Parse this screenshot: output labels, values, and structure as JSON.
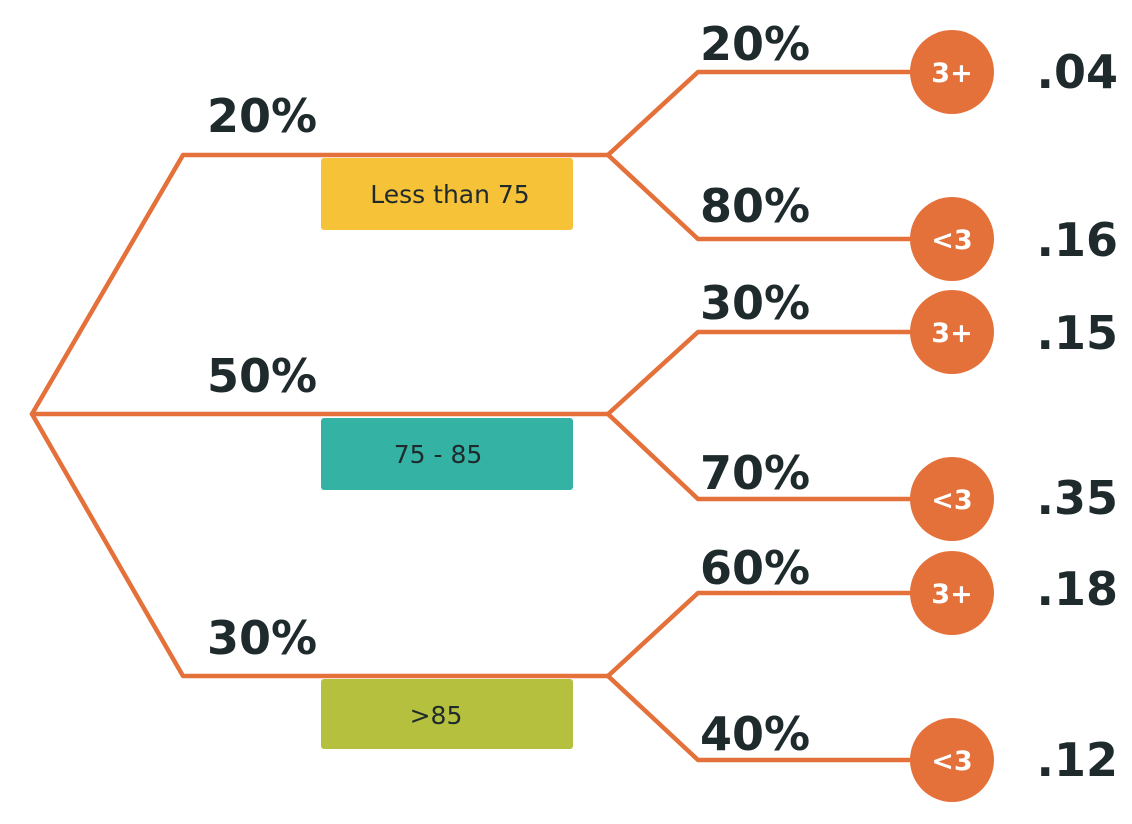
{
  "colors": {
    "branch": "#e4703a",
    "leaf": "#e4703a",
    "text": "#1f2a2d",
    "box_less_than_75": "#f6c238",
    "box_75_85": "#34b3a4",
    "box_over_85": "#b5c13e"
  },
  "branches": [
    {
      "probability": "20%",
      "label": "Less than 75",
      "outcomes": [
        {
          "probability": "20%",
          "result": "3+",
          "joint": ".04"
        },
        {
          "probability": "80%",
          "result": "<3",
          "joint": ".16"
        }
      ]
    },
    {
      "probability": "50%",
      "label": "75 - 85",
      "outcomes": [
        {
          "probability": "30%",
          "result": "3+",
          "joint": ".15"
        },
        {
          "probability": "70%",
          "result": "<3",
          "joint": ".35"
        }
      ]
    },
    {
      "probability": "30%",
      "label": ">85",
      "outcomes": [
        {
          "probability": "60%",
          "result": "3+",
          "joint": ".18"
        },
        {
          "probability": "40%",
          "result": "<3",
          "joint": ".12"
        }
      ]
    }
  ]
}
